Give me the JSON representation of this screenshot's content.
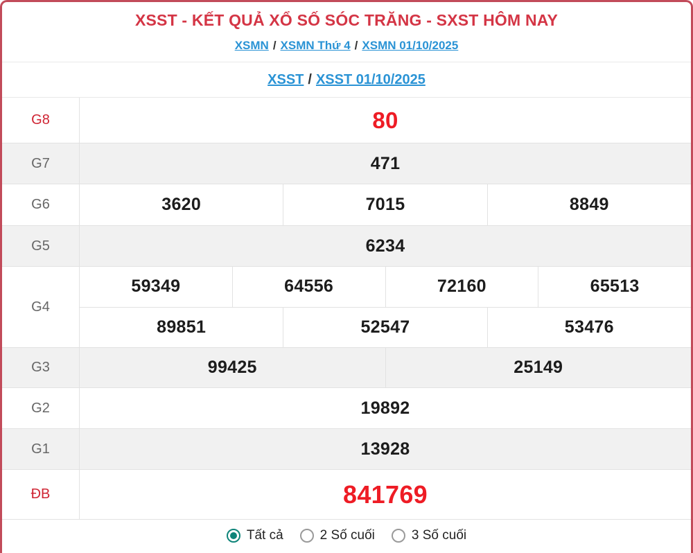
{
  "header": {
    "title": "XSST - KẾT QUẢ XỔ SỐ SÓC TRĂNG - SXST HÔM NAY",
    "breadcrumb_separator": "/",
    "breadcrumb1": [
      {
        "id": "xsmn",
        "label": "XSMN"
      },
      {
        "id": "xsmn-thu-4",
        "label": "XSMN Thứ 4"
      },
      {
        "id": "xsmn-date",
        "label": "XSMN 01/10/2025"
      }
    ],
    "breadcrumb2": [
      {
        "id": "xsst",
        "label": "XSST"
      },
      {
        "id": "xsst-date",
        "label": "XSST 01/10/2025"
      }
    ]
  },
  "table": {
    "rows": [
      {
        "id": "g8",
        "label": "G8",
        "highlight": true,
        "lines": [
          [
            "80"
          ]
        ]
      },
      {
        "id": "g7",
        "label": "G7",
        "highlight": false,
        "lines": [
          [
            "471"
          ]
        ]
      },
      {
        "id": "g6",
        "label": "G6",
        "highlight": false,
        "lines": [
          [
            "3620",
            "7015",
            "8849"
          ]
        ]
      },
      {
        "id": "g5",
        "label": "G5",
        "highlight": false,
        "lines": [
          [
            "6234"
          ]
        ]
      },
      {
        "id": "g4",
        "label": "G4",
        "highlight": false,
        "lines": [
          [
            "59349",
            "64556",
            "72160",
            "65513"
          ],
          [
            "89851",
            "52547",
            "53476"
          ]
        ]
      },
      {
        "id": "g3",
        "label": "G3",
        "highlight": false,
        "lines": [
          [
            "99425",
            "25149"
          ]
        ]
      },
      {
        "id": "g2",
        "label": "G2",
        "highlight": false,
        "lines": [
          [
            "19892"
          ]
        ]
      },
      {
        "id": "g1",
        "label": "G1",
        "highlight": false,
        "lines": [
          [
            "13928"
          ]
        ]
      },
      {
        "id": "db",
        "label": "ĐB",
        "highlight": true,
        "lines": [
          [
            "841769"
          ]
        ]
      }
    ]
  },
  "footer": {
    "options": [
      {
        "id": "all",
        "label": "Tất cả",
        "selected": true
      },
      {
        "id": "last2",
        "label": "2 Số cuối",
        "selected": false
      },
      {
        "id": "last3",
        "label": "3 Số cuối",
        "selected": false
      }
    ]
  },
  "colors": {
    "border_red": "#c24b5a",
    "title_red": "#d43545",
    "link_blue": "#2a93d5",
    "value_red": "#ee1c25",
    "label_red": "#cf2433",
    "radio_teal": "#0e8479"
  }
}
